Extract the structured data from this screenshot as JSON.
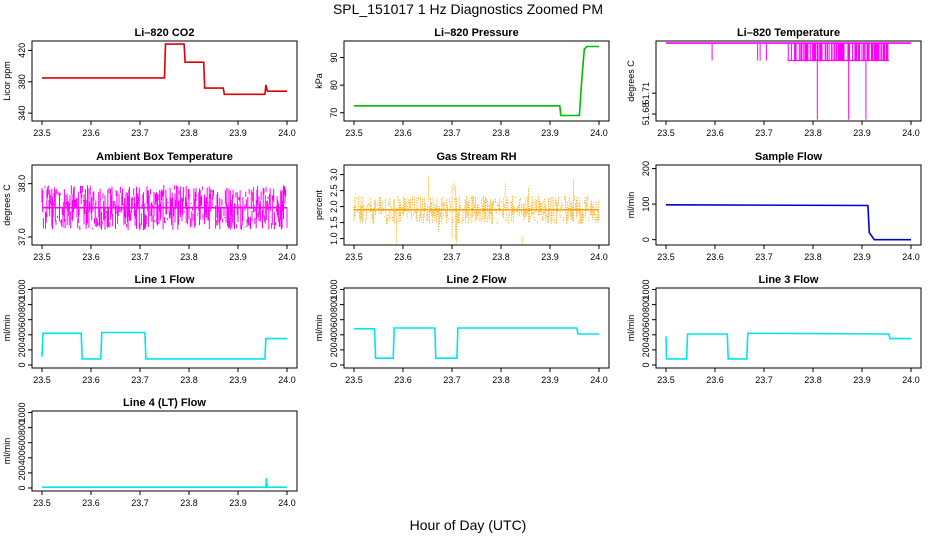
{
  "figure": {
    "title": "SPL_151017  1 Hz Diagnostics Zoomed PM",
    "xlabel": "Hour of Day (UTC)"
  },
  "chart_data": [
    {
      "type": "line",
      "title": "Li–820 CO2",
      "ylabel": "Licor ppm",
      "color": "#dd0000",
      "xlim": [
        23.5,
        24.0
      ],
      "xticks": [
        "23.5",
        "23.6",
        "23.7",
        "23.8",
        "23.9",
        "24.0"
      ],
      "ylim": [
        330,
        432
      ],
      "yticks": [
        340,
        380,
        420
      ],
      "series": [
        {
          "name": "Li-820 CO2",
          "x": [
            23.5,
            23.75,
            23.752,
            23.79,
            23.792,
            23.83,
            23.832,
            23.87,
            23.872,
            23.95,
            23.955,
            23.957,
            23.96,
            23.962,
            24.0
          ],
          "y": [
            385,
            385,
            428,
            428,
            405,
            405,
            372,
            372,
            364,
            364,
            364,
            376,
            368,
            368,
            368
          ]
        }
      ]
    },
    {
      "type": "line",
      "title": "Li–820 Pressure",
      "ylabel": "kPa",
      "color": "#00bb00",
      "xlim": [
        23.5,
        24.0
      ],
      "xticks": [
        "23.5",
        "23.6",
        "23.7",
        "23.8",
        "23.9",
        "24.0"
      ],
      "ylim": [
        67,
        96
      ],
      "yticks": [
        70,
        80,
        90
      ],
      "series": [
        {
          "name": "Li-820 Pressure",
          "x": [
            23.5,
            23.92,
            23.922,
            23.96,
            23.965,
            23.97,
            23.975,
            24.0
          ],
          "y": [
            72.5,
            72.5,
            69,
            69,
            82,
            93,
            94,
            94
          ]
        }
      ]
    },
    {
      "type": "line",
      "title": "Li–820 Temperature",
      "ylabel": "degrees C",
      "color": "#ff00ff",
      "xlim": [
        23.5,
        24.0
      ],
      "xticks": [
        "23.5",
        "23.6",
        "23.7",
        "23.8",
        "23.9",
        "24.0"
      ],
      "ylim": [
        51.67,
        51.785
      ],
      "yticks": [
        51.68,
        51.71
      ],
      "series": [
        {
          "name": "Li-820 Temperature",
          "x": [
            23.5,
            24.0
          ],
          "y": [
            51.782,
            51.782
          ]
        }
      ]
    },
    {
      "type": "line",
      "title": "Ambient Box Temperature",
      "ylabel": "degrees C",
      "color": "#ff00ff",
      "xlim": [
        23.5,
        24.0
      ],
      "xticks": [
        "23.5",
        "23.6",
        "23.7",
        "23.8",
        "23.9",
        "24.0"
      ],
      "ylim": [
        36.85,
        38.35
      ],
      "yticks": [
        37.0,
        38.0
      ],
      "series": [
        {
          "name": "Ambient Box Temperature",
          "x": [
            23.5,
            24.0
          ],
          "y": [
            37.55,
            37.55
          ]
        }
      ]
    },
    {
      "type": "line",
      "title": "Gas Stream RH",
      "ylabel": "percent",
      "color": "#ffa500",
      "xlim": [
        23.5,
        24.0
      ],
      "xticks": [
        "23.5",
        "23.6",
        "23.7",
        "23.8",
        "23.9",
        "24.0"
      ],
      "ylim": [
        0.8,
        3.3
      ],
      "yticks": [
        1.0,
        1.5,
        2.0,
        2.5,
        3.0
      ],
      "series": [
        {
          "name": "Gas Stream RH",
          "x": [
            23.5,
            24.0
          ],
          "y": [
            1.9,
            1.9
          ]
        }
      ]
    },
    {
      "type": "line",
      "title": "Sample Flow",
      "ylabel": "ml/min",
      "color": "#0000cc",
      "xlim": [
        23.5,
        24.0
      ],
      "xticks": [
        "23.5",
        "23.6",
        "23.7",
        "23.8",
        "23.9",
        "24.0"
      ],
      "ylim": [
        -15,
        210
      ],
      "yticks": [
        0,
        100,
        200
      ],
      "series": [
        {
          "name": "Sample Flow",
          "x": [
            23.5,
            23.912,
            23.915,
            23.925,
            24.0
          ],
          "y": [
            98,
            96,
            20,
            0,
            0
          ]
        }
      ]
    },
    {
      "type": "line",
      "title": "Line 1 Flow",
      "ylabel": "ml/min",
      "color": "#00e5ee",
      "xlim": [
        23.5,
        24.0
      ],
      "xticks": [
        "23.5",
        "23.6",
        "23.7",
        "23.8",
        "23.9",
        "24.0"
      ],
      "ylim": [
        -40,
        1020
      ],
      "yticks": [
        0,
        200,
        400,
        600,
        800,
        1000
      ],
      "series": [
        {
          "name": "Line 1 Flow",
          "x": [
            23.5,
            23.502,
            23.58,
            23.582,
            23.62,
            23.622,
            23.71,
            23.712,
            23.955,
            23.957,
            24.0
          ],
          "y": [
            110,
            420,
            420,
            80,
            80,
            430,
            430,
            80,
            80,
            350,
            350
          ]
        }
      ]
    },
    {
      "type": "line",
      "title": "Line 2 Flow",
      "ylabel": "ml/min",
      "color": "#00e5ee",
      "xlim": [
        23.5,
        24.0
      ],
      "xticks": [
        "23.5",
        "23.6",
        "23.7",
        "23.8",
        "23.9",
        "24.0"
      ],
      "ylim": [
        -40,
        1020
      ],
      "yticks": [
        0,
        200,
        400,
        600,
        800,
        1000
      ],
      "series": [
        {
          "name": "Line 2 Flow",
          "x": [
            23.5,
            23.542,
            23.544,
            23.58,
            23.582,
            23.665,
            23.667,
            23.71,
            23.712,
            23.955,
            23.957,
            24.0
          ],
          "y": [
            480,
            480,
            90,
            90,
            490,
            490,
            90,
            90,
            490,
            490,
            410,
            410
          ]
        }
      ]
    },
    {
      "type": "line",
      "title": "Line 3 Flow",
      "ylabel": "ml/min",
      "color": "#00e5ee",
      "xlim": [
        23.5,
        24.0
      ],
      "xticks": [
        "23.5",
        "23.6",
        "23.7",
        "23.8",
        "23.9",
        "24.0"
      ],
      "ylim": [
        -40,
        1020
      ],
      "yticks": [
        0,
        200,
        400,
        600,
        800,
        1000
      ],
      "series": [
        {
          "name": "Line 3 Flow",
          "x": [
            23.5,
            23.501,
            23.503,
            23.542,
            23.544,
            23.625,
            23.627,
            23.665,
            23.667,
            23.955,
            23.957,
            24.0
          ],
          "y": [
            380,
            80,
            80,
            80,
            410,
            410,
            80,
            80,
            420,
            410,
            350,
            350
          ]
        }
      ]
    },
    {
      "type": "line",
      "title": "Line 4 (LT) Flow",
      "ylabel": "ml/min",
      "color": "#00e5ee",
      "xlim": [
        23.5,
        24.0
      ],
      "xticks": [
        "23.5",
        "23.6",
        "23.7",
        "23.8",
        "23.9",
        "24.0"
      ],
      "ylim": [
        -40,
        1020
      ],
      "yticks": [
        0,
        200,
        400,
        600,
        800,
        1000
      ],
      "series": [
        {
          "name": "Line 4 (LT) Flow",
          "x": [
            23.5,
            23.957,
            23.958,
            23.96,
            23.962,
            24.0
          ],
          "y": [
            10,
            10,
            130,
            10,
            10,
            10
          ]
        }
      ]
    }
  ]
}
